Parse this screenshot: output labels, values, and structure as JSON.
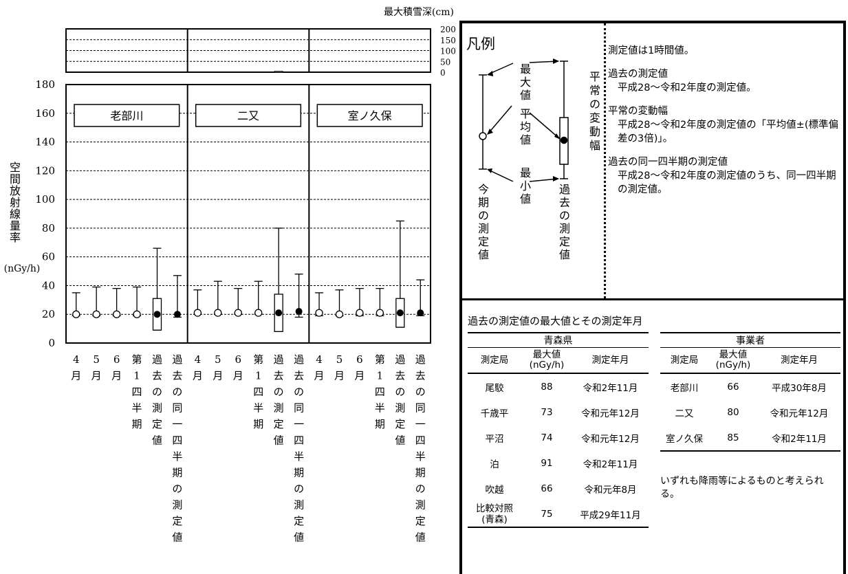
{
  "chart_data": {
    "type": "box-range",
    "snow_axis_title": "最大積雪深(cm)",
    "snow_ticks": [
      "200",
      "150",
      "100",
      "50",
      "0"
    ],
    "snow_depth_cm": [
      1,
      4,
      1
    ],
    "y_axis_title_chars": [
      "空",
      "間",
      "放",
      "射",
      "線",
      "量",
      "率"
    ],
    "y_unit": "(nGy/h)",
    "y_ticks": [
      "0",
      "20",
      "40",
      "60",
      "80",
      "100",
      "120",
      "140",
      "160",
      "180"
    ],
    "ylim": [
      0,
      180
    ],
    "category_labels": [
      [
        "4",
        "月"
      ],
      [
        "5",
        "月"
      ],
      [
        "6",
        "月"
      ],
      [
        "第",
        "1",
        "四",
        "半",
        "期"
      ],
      [
        "過",
        "去",
        "の",
        "測",
        "定",
        "値"
      ],
      [
        "過",
        "去",
        "の",
        "同",
        "一",
        "四",
        "半",
        "期",
        "の",
        "測",
        "定",
        "値"
      ]
    ],
    "stations": [
      {
        "name": "老部川",
        "monthly": [
          {
            "min": 19,
            "mean": 20,
            "max": 35
          },
          {
            "min": 19,
            "mean": 20,
            "max": 39
          },
          {
            "min": 19,
            "mean": 20,
            "max": 38
          },
          {
            "min": 19,
            "mean": 20,
            "max": 39
          }
        ],
        "past": {
          "min": 9,
          "low": 9,
          "mean": 20,
          "high": 31,
          "max": 66
        },
        "same_q": {
          "min": 18,
          "mean": 20,
          "max": 47
        }
      },
      {
        "name": "二又",
        "monthly": [
          {
            "min": 20,
            "mean": 21,
            "max": 37
          },
          {
            "min": 20,
            "mean": 21,
            "max": 43
          },
          {
            "min": 20,
            "mean": 21,
            "max": 38
          },
          {
            "min": 20,
            "mean": 21,
            "max": 43
          }
        ],
        "past": {
          "min": 8,
          "low": 8,
          "mean": 21,
          "high": 34,
          "max": 80
        },
        "same_q": {
          "min": 18,
          "mean": 22,
          "max": 48
        }
      },
      {
        "name": "室ノ久保",
        "monthly": [
          {
            "min": 19,
            "mean": 21,
            "max": 35
          },
          {
            "min": 19,
            "mean": 20,
            "max": 37
          },
          {
            "min": 19,
            "mean": 21,
            "max": 38
          },
          {
            "min": 19,
            "mean": 21,
            "max": 38
          }
        ],
        "past": {
          "min": 11,
          "low": 11,
          "mean": 21,
          "high": 31,
          "max": 85
        },
        "same_q": {
          "min": 19,
          "mean": 21,
          "max": 44
        }
      }
    ]
  },
  "legend": {
    "title": "凡例",
    "max_label": [
      "最",
      "大",
      "値"
    ],
    "mean_label": [
      "平",
      "均",
      "値"
    ],
    "min_label": [
      "最",
      "小",
      "値"
    ],
    "current_label": [
      "今",
      "期",
      "の",
      "測",
      "定",
      "値"
    ],
    "past_label": [
      "過",
      "去",
      "の",
      "測",
      "定",
      "値"
    ],
    "range_label": [
      "平",
      "常",
      "の",
      "変",
      "動",
      "幅"
    ]
  },
  "notes": [
    "測定値は1時間値。",
    "過去の測定値",
    "平成28～令和2年度の測定値。",
    "平常の変動幅",
    "平成28～令和2年度の測定値の「平均値±(標準偏差の3倍)」。",
    "過去の同一四半期の測定値",
    "平成28～令和2年度の測定値のうち、同一四半期の測定値。"
  ],
  "max_table": {
    "title": "過去の測定値の最大値とその測定年月",
    "col_station": "測定局",
    "col_max": "最大値",
    "col_unit": "(nGy/h)",
    "col_date": "測定年月",
    "aomori": {
      "group": "青森県",
      "rows": [
        {
          "station": "尾駮",
          "value": "88",
          "date": "令和2年11月"
        },
        {
          "station": "千歳平",
          "value": "73",
          "date": "令和元年12月"
        },
        {
          "station": "平沼",
          "value": "74",
          "date": "令和元年12月"
        },
        {
          "station": "泊",
          "value": "91",
          "date": "令和2年11月"
        },
        {
          "station": "吹越",
          "value": "66",
          "date": "令和元年8月"
        },
        {
          "station": "比較対照",
          "station2": "(青森)",
          "value": "75",
          "date": "平成29年11月"
        }
      ]
    },
    "operator": {
      "group": "事業者",
      "rows": [
        {
          "station": "老部川",
          "value": "66",
          "date": "平成30年8月"
        },
        {
          "station": "二又",
          "value": "80",
          "date": "令和元年12月"
        },
        {
          "station": "室ノ久保",
          "value": "85",
          "date": "令和2年11月"
        }
      ]
    },
    "note": "いずれも降雨等によるものと考えられる。"
  }
}
